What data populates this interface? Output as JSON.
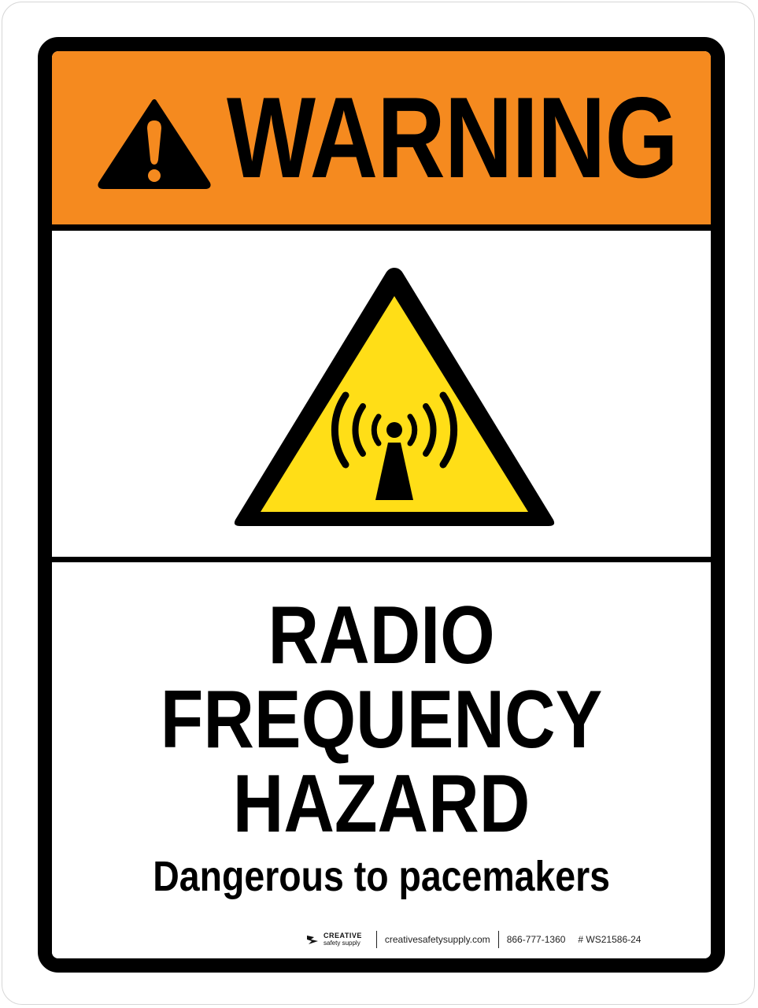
{
  "header": {
    "title": "WARNING",
    "icon": "warning-triangle-icon",
    "background_color": "#f58a1f"
  },
  "symbol": {
    "icon": "non-ionizing-radiation-icon",
    "fill_color": "#ffde17"
  },
  "message": {
    "lines": [
      "RADIO",
      "FREQUENCY",
      "HAZARD"
    ],
    "subtitle": "Dangerous to pacemakers"
  },
  "footer": {
    "brand_name": "CREATIVE",
    "brand_sub": "safety supply",
    "website": "creativesafetysupply.com",
    "phone": "866-777-1360",
    "sku": "# WS21586-24"
  }
}
